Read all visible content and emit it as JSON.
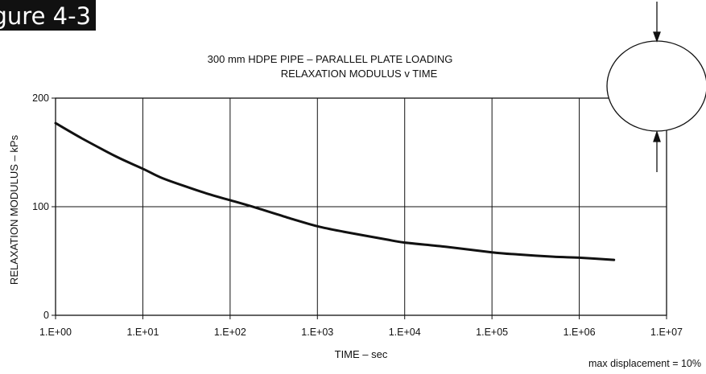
{
  "figure_label": "gure 4-3",
  "note": "max displacement = 10%",
  "chart_data": {
    "type": "line",
    "title": "300 mm HDPE PIPE – PARALLEL PLATE LOADING",
    "subtitle": "RELAXATION MODULUS v TIME",
    "xlabel": "TIME – sec",
    "ylabel": "RELAXATION MODULUS – kPs",
    "x_scale": "log",
    "xlim": [
      1,
      10000000
    ],
    "ylim": [
      0,
      200
    ],
    "x_ticks": [
      1,
      10,
      100,
      1000,
      10000,
      100000,
      1000000,
      10000000
    ],
    "x_tick_labels": [
      "1.E+00",
      "1.E+01",
      "1.E+02",
      "1.E+03",
      "1.E+04",
      "1.E+05",
      "1.E+06",
      "1.E+07"
    ],
    "y_ticks": [
      0,
      100,
      200
    ],
    "y_tick_labels": [
      "0",
      "100",
      "200"
    ],
    "grid": true,
    "series": [
      {
        "x": [
          1,
          2,
          5,
          10,
          16,
          30,
          60,
          100,
          200,
          500,
          1000,
          2000,
          6000,
          10000,
          30000,
          100000,
          200000,
          500000,
          1000000,
          2500000
        ],
        "y": [
          177,
          163,
          146,
          135,
          127,
          119,
          111,
          106,
          99,
          89,
          82,
          77,
          70,
          67,
          63,
          58,
          56,
          54,
          53,
          51
        ],
        "color": "#111111"
      }
    ]
  }
}
